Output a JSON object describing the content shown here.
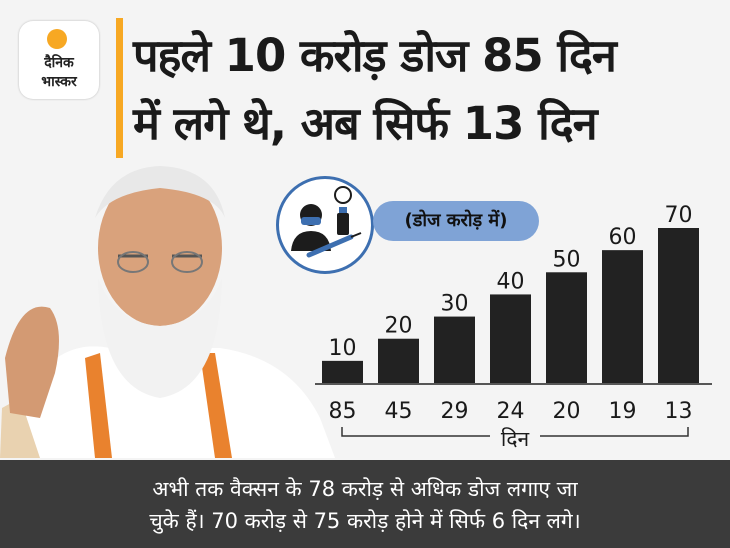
{
  "brand": {
    "line1": "दैनिक",
    "line2": "भास्कर",
    "accent_color": "#f7a823"
  },
  "headline": {
    "line1": "पहले 10 करोड़ डोज 85 दिन",
    "line2": "में लगे थे, अब सिर्फ 13 दिन"
  },
  "unit_label": "(डोज करोड़ में)",
  "icon": "vaccination-icon",
  "chart_data": {
    "type": "bar",
    "categories": [
      "85",
      "45",
      "29",
      "24",
      "20",
      "19",
      "13"
    ],
    "values": [
      10,
      20,
      30,
      40,
      50,
      60,
      70
    ],
    "xlabel": "दिन",
    "ylabel": "",
    "ylim": [
      0,
      70
    ],
    "grid": false,
    "bar_color": "#222222"
  },
  "footer": {
    "line1": "अभी तक वैक्सन के 78 करोड़ से अधिक डोज लगाए जा",
    "line2": "चुके हैं। 70 करोड़ से 75 करोड़ होने में सिर्फ 6 दिन लगे।"
  }
}
